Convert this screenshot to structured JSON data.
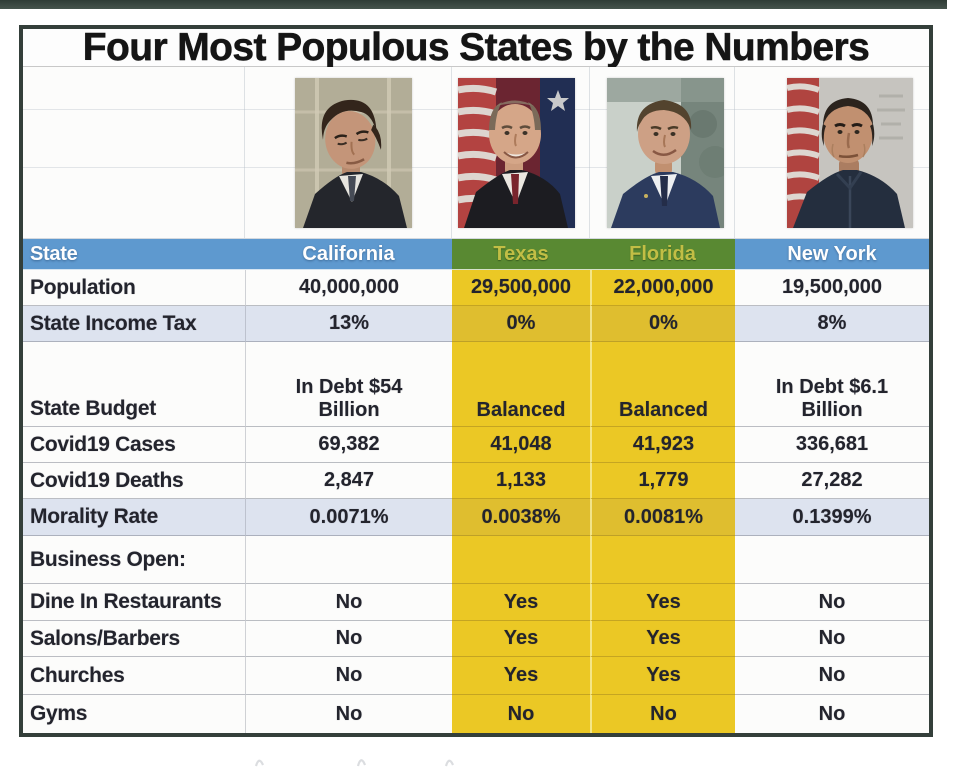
{
  "title": "Four Most Populous States by the Numbers",
  "colors": {
    "header_blue": "#5b9ad3",
    "header_green": "#578a2d",
    "header_green_text": "#c3bf3e",
    "highlight_yellow": "#eec91c",
    "highlight_yellow_tint": "#e2bf27",
    "row_tint": "#dee4f1",
    "text_dark": "#22232d",
    "frame": "#333e39",
    "strip": "#46544d"
  },
  "photos": [
    "california-governor-portrait",
    "texas-governor-portrait",
    "florida-governor-portrait",
    "new-york-governor-portrait"
  ],
  "table": {
    "header": [
      "State",
      "California",
      "Texas",
      "Florida",
      "New York"
    ],
    "rows": [
      {
        "label": "Population",
        "values": [
          "40,000,000",
          "29,500,000",
          "22,000,000",
          "19,500,000"
        ],
        "tint": false,
        "tall": false
      },
      {
        "label": "State Income Tax",
        "values": [
          "13%",
          "0%",
          "0%",
          "8%"
        ],
        "tint": true,
        "tall": false
      },
      {
        "label": "State Budget",
        "values": [
          "In Debt $54 Billion",
          "Balanced",
          "Balanced",
          "In Debt $6.1 Billion"
        ],
        "tint": false,
        "tall": true
      },
      {
        "label": "Covid19 Cases",
        "values": [
          "69,382",
          "41,048",
          "41,923",
          "336,681"
        ],
        "tint": false,
        "tall": false
      },
      {
        "label": "Covid19 Deaths",
        "values": [
          "2,847",
          "1,133",
          "1,779",
          "27,282"
        ],
        "tint": false,
        "tall": false
      },
      {
        "label": "Morality Rate",
        "values": [
          "0.0071%",
          "0.0038%",
          "0.0081%",
          "0.1399%"
        ],
        "tint": true,
        "tall": false
      },
      {
        "label": "Business Open:",
        "values": [
          "",
          "",
          "",
          ""
        ],
        "tint": false,
        "tall": false
      },
      {
        "label": "Dine In Restaurants",
        "values": [
          "No",
          "Yes",
          "Yes",
          "No"
        ],
        "tint": false,
        "tall": false
      },
      {
        "label": "Salons/Barbers",
        "values": [
          "No",
          "Yes",
          "Yes",
          "No"
        ],
        "tint": false,
        "tall": false
      },
      {
        "label": "Churches",
        "values": [
          "No",
          "Yes",
          "Yes",
          "No"
        ],
        "tint": false,
        "tall": false
      },
      {
        "label": "Gyms",
        "values": [
          "No",
          "No",
          "No",
          "No"
        ],
        "tint": false,
        "tall": false
      }
    ]
  }
}
